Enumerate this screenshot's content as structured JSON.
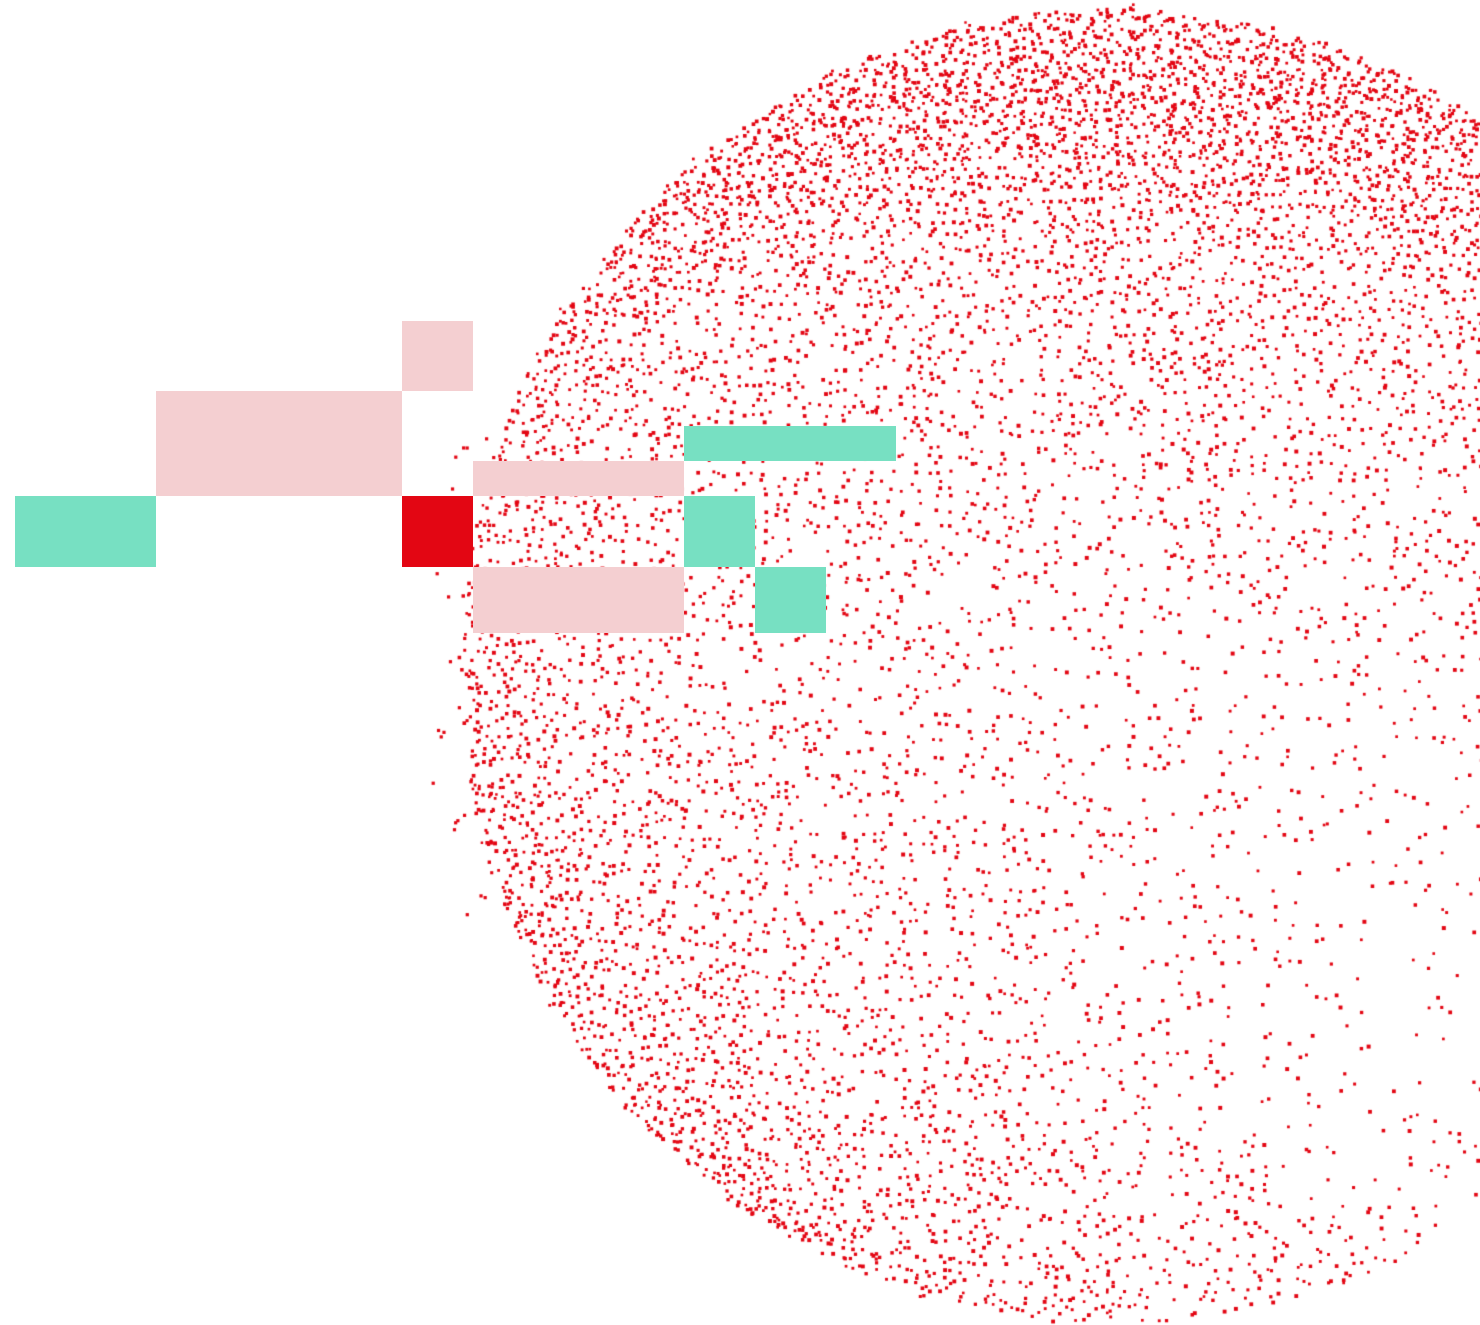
{
  "colors": {
    "dot": "#e30613",
    "pink_block": "#f4cfd1",
    "mint_block": "#77e0c2",
    "red_block": "#e30613",
    "background": "#ffffff"
  },
  "graphic": {
    "dot_sphere_icon": "halftone-dot-sphere",
    "block_cluster_icon": "pixel-block-cluster"
  }
}
